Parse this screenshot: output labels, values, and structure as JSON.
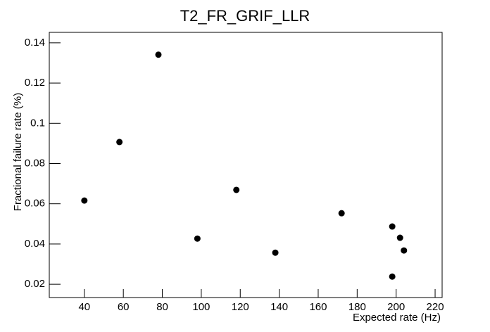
{
  "chart_data": {
    "type": "scatter",
    "title": "T2_FR_GRIF_LLR",
    "x_label": "Expected rate (Hz)",
    "y_label": "Fractional failure rate (%)",
    "series": [
      {
        "color": "#000000",
        "x": [
          40,
          58,
          78,
          98,
          118,
          138,
          172,
          198,
          202,
          204,
          198
        ],
        "values": [
          0.0616,
          0.0907,
          0.1341,
          0.0427,
          0.0669,
          0.0357,
          0.0553,
          0.0487,
          0.0431,
          0.0368,
          0.0238
        ]
      }
    ],
    "xlim": [
      22,
      223.6
    ],
    "xticks": [
      40,
      60,
      80,
      100,
      120,
      140,
      160,
      180,
      200,
      220
    ],
    "ylim": [
      0.0134,
      0.1452
    ],
    "yticks": [
      0.02,
      0.04,
      0.06,
      0.08,
      0.1,
      0.12,
      0.14
    ]
  }
}
